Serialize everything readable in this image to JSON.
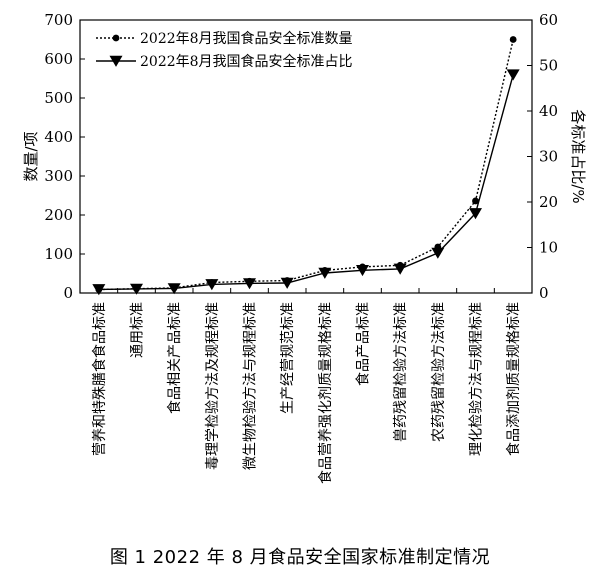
{
  "caption": "图 1   2022 年 8 月食品安全国家标准制定情况",
  "chart_data": {
    "type": "line",
    "categories": [
      "营养和特殊膳食食品标准",
      "通用标准",
      "食品相关产品标准",
      "毒理学检验方法及规程标准",
      "微生物检验方法与规程标准",
      "生产经营规范标准",
      "食品营养强化剂质量规格标准",
      "食品产品标准",
      "兽药残留检验方法标准",
      "农药残留检验方法标准",
      "理化检验方法与规程标准",
      "食品添加剂质量规格标准"
    ],
    "series": [
      {
        "name": "2022年8月我国食品安全标准数量",
        "axis": "left",
        "marker": "circle",
        "dash": "dotted",
        "values": [
          9,
          11,
          13,
          27,
          30,
          32,
          58,
          67,
          71,
          118,
          236,
          650
        ]
      },
      {
        "name": "2022年8月我国食品安全标准占比",
        "axis": "right",
        "marker": "triangle-down",
        "dash": "solid",
        "values": [
          0.8,
          0.9,
          1.0,
          1.9,
          2.1,
          2.2,
          4.4,
          5.0,
          5.3,
          8.8,
          17.5,
          48.0
        ]
      }
    ],
    "ylabel": "数量/项",
    "y2label": "各标准占比/%",
    "ylim": [
      0,
      700
    ],
    "y2lim": [
      0,
      60
    ],
    "yticks": [
      0,
      100,
      200,
      300,
      400,
      500,
      600,
      700
    ],
    "y2ticks": [
      0,
      10,
      20,
      30,
      40,
      50,
      60
    ],
    "legend_position": "top-left",
    "grid": false
  }
}
